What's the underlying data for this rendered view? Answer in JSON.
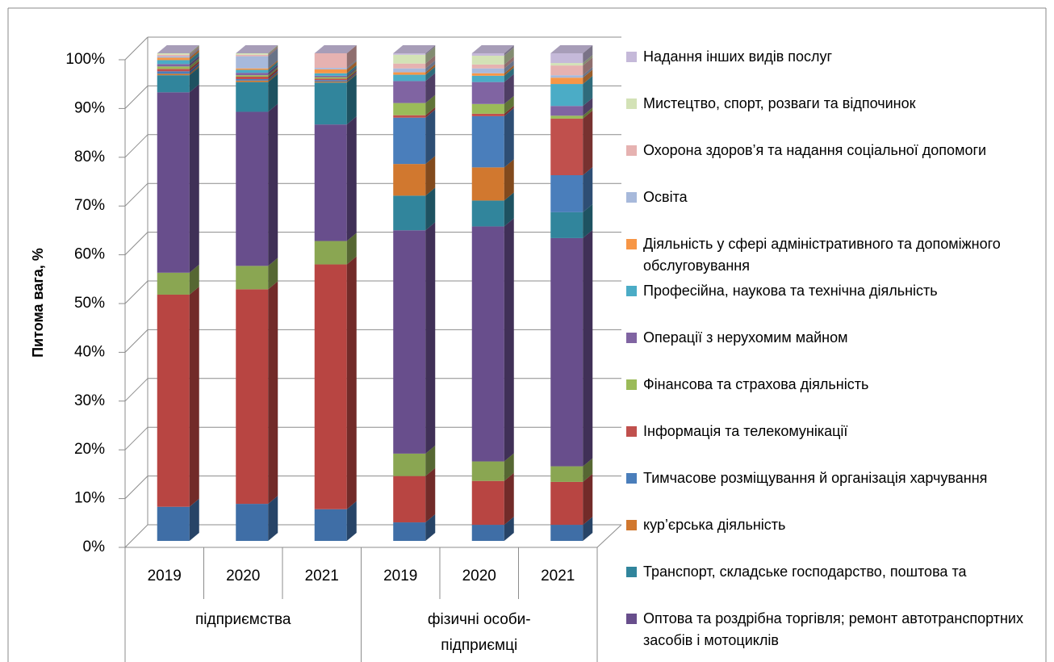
{
  "chart_data": {
    "type": "bar3d_stacked",
    "ylabel": "Питома вага, %",
    "categories": [
      "2019",
      "2020",
      "2021",
      "2019",
      "2020",
      "2021"
    ],
    "groups": [
      "підприємства",
      "фізичні особи-підприємці"
    ],
    "ylim": [
      0,
      100
    ],
    "yticks": [
      {
        "value": 0,
        "label": "0%"
      },
      {
        "value": 10,
        "label": "10%"
      },
      {
        "value": 20,
        "label": "20%"
      },
      {
        "value": 30,
        "label": "30%"
      },
      {
        "value": 40,
        "label": "40%"
      },
      {
        "value": 50,
        "label": "50%"
      },
      {
        "value": 60,
        "label": "60%"
      },
      {
        "value": 70,
        "label": "70%"
      },
      {
        "value": 80,
        "label": "80%"
      },
      {
        "value": 90,
        "label": "90%"
      },
      {
        "value": 100,
        "label": "100%"
      }
    ],
    "grid": true,
    "legend": "right",
    "series": [
      {
        "name": null,
        "color": "#3f6ea6",
        "values": [
          7.0,
          7.6,
          6.5,
          3.8,
          3.3,
          3.3
        ]
      },
      {
        "name": null,
        "color": "#b84542",
        "values": [
          43.5,
          44.0,
          50.2,
          9.5,
          9.0,
          8.8
        ]
      },
      {
        "name": null,
        "color": "#8aa652",
        "values": [
          4.5,
          4.8,
          4.8,
          4.6,
          4.0,
          3.2
        ]
      },
      {
        "name": "Оптова та роздрібна торгівля; ремонт автотранспортних засобів і мотоциклів",
        "color": "#684e8c",
        "values": [
          37.0,
          31.6,
          23.9,
          45.8,
          48.2,
          46.8
        ]
      },
      {
        "name": "Транспорт, складське господарство, поштова та",
        "color": "#31859c",
        "values": [
          3.5,
          6.1,
          8.6,
          7.1,
          5.3,
          5.3
        ]
      },
      {
        "name": " кур’єрська діяльність",
        "color": "#d1782f",
        "values": [
          0.3,
          0.3,
          0.2,
          6.5,
          6.8,
          0.0
        ]
      },
      {
        "name": "Тимчасове розміщування й організація харчування",
        "color": "#4a7ebb",
        "values": [
          0.5,
          0.3,
          0.3,
          9.5,
          10.5,
          7.6
        ]
      },
      {
        "name": "Інформація та телекомунікації",
        "color": "#c0504d",
        "values": [
          0.5,
          0.5,
          0.3,
          0.5,
          0.5,
          11.6
        ]
      },
      {
        "name": "Фінансова та страхова діяльність",
        "color": "#9bbb59",
        "values": [
          0.5,
          0.3,
          0.3,
          2.5,
          2.0,
          0.6
        ]
      },
      {
        "name": "Операції з нерухомим майном",
        "color": "#8064a2",
        "values": [
          0.5,
          0.5,
          0.3,
          4.5,
          4.5,
          2.0
        ]
      },
      {
        "name": "Професійна, наукова та технічна діяльність",
        "color": "#4bacc6",
        "values": [
          0.8,
          0.6,
          0.5,
          1.3,
          1.3,
          4.5
        ]
      },
      {
        "name": "Діяльність у сфері адміністративного та допоміжного обслуговування",
        "color": "#f79646",
        "values": [
          0.5,
          0.3,
          0.8,
          0.5,
          0.5,
          1.3
        ]
      },
      {
        "name": "Освіта",
        "color": "#a7b9db",
        "values": [
          0.3,
          2.5,
          0.3,
          0.8,
          1.0,
          0.5
        ]
      },
      {
        "name": "Охорона здоров’я та надання соціальної допомоги",
        "color": "#e6b2b1",
        "values": [
          0.3,
          0.3,
          3.0,
          1.0,
          0.8,
          2.0
        ]
      },
      {
        "name": "Мистецтво, спорт, розваги та відпочинок",
        "color": "#d3e2b6",
        "values": [
          0.3,
          0.3,
          0.0,
          1.8,
          1.8,
          0.5
        ]
      },
      {
        "name": "Надання інших видів послуг",
        "color": "#c5b9d9",
        "values": [
          0.0,
          0.0,
          0.0,
          0.3,
          0.5,
          2.0
        ]
      }
    ]
  }
}
